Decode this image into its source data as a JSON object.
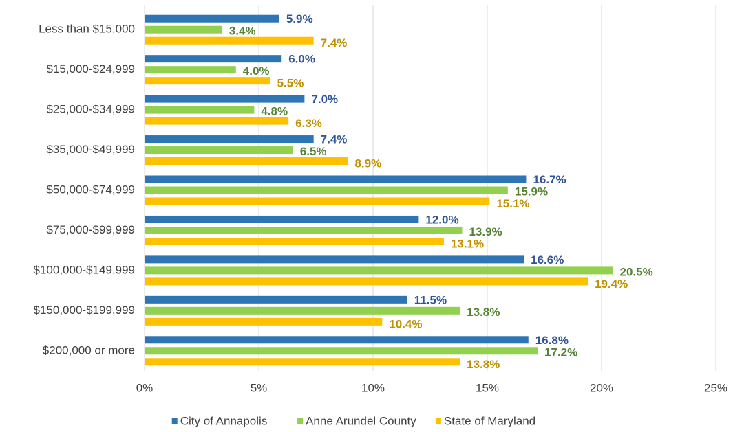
{
  "chart_data": {
    "type": "bar",
    "categories": [
      "Less than $15,000",
      "$15,000-$24,999",
      "$25,000-$34,999",
      "$35,000-$49,999",
      "$50,000-$74,999",
      "$75,000-$99,999",
      "$100,000-$149,999",
      "$150,000-$199,999",
      "$200,000 or more"
    ],
    "series": [
      {
        "name": "City of Annapolis",
        "color": "#2e75b6",
        "label_color": "#2f5597",
        "values": [
          5.9,
          6.0,
          7.0,
          7.4,
          16.7,
          12.0,
          16.6,
          11.5,
          16.8
        ],
        "value_labels": [
          "5.9%",
          "6.0%",
          "7.0%",
          "7.4%",
          "16.7%",
          "12.0%",
          "16.6%",
          "11.5%",
          "16.8%"
        ]
      },
      {
        "name": "Anne Arundel County",
        "color": "#92d050",
        "label_color": "#548235",
        "values": [
          3.4,
          4.0,
          4.8,
          6.5,
          15.9,
          13.9,
          20.5,
          13.8,
          17.2
        ],
        "value_labels": [
          "3.4%",
          "4.0%",
          "4.8%",
          "6.5%",
          "15.9%",
          "13.9%",
          "20.5%",
          "13.8%",
          "17.2%"
        ]
      },
      {
        "name": "State of Maryland",
        "color": "#ffc000",
        "label_color": "#bf9000",
        "values": [
          7.4,
          5.5,
          6.3,
          8.9,
          15.1,
          13.1,
          19.4,
          10.4,
          13.8
        ],
        "value_labels": [
          "7.4%",
          "5.5%",
          "6.3%",
          "8.9%",
          "15.1%",
          "13.1%",
          "19.4%",
          "10.4%",
          "13.8%"
        ]
      }
    ],
    "xlim": [
      0,
      25
    ],
    "xticks": [
      {
        "value": 0,
        "label": "0%"
      },
      {
        "value": 5,
        "label": "5%"
      },
      {
        "value": 10,
        "label": "10%"
      },
      {
        "value": 15,
        "label": "15%"
      },
      {
        "value": 20,
        "label": "20%"
      },
      {
        "value": 25,
        "label": "25%"
      }
    ],
    "grid": true,
    "legend": "bottom"
  }
}
